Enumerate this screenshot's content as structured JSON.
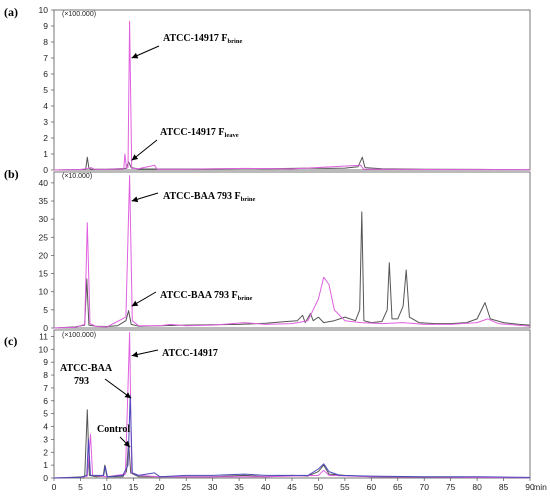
{
  "chart_data": [
    {
      "type": "line",
      "panel_label": "(a)",
      "scale_note": "(×100.000)",
      "xlim": [
        0,
        90
      ],
      "ylim": [
        0,
        10
      ],
      "y_ticks": [
        "0",
        "1",
        "2",
        "3",
        "4",
        "5",
        "6",
        "7",
        "8",
        "9",
        "10"
      ],
      "series": [
        {
          "color": "#555555",
          "points": [
            [
              0,
              0
            ],
            [
              2,
              0.02
            ],
            [
              5,
              0.03
            ],
            [
              6,
              0.05
            ],
            [
              6.3,
              0.8
            ],
            [
              6.6,
              0.1
            ],
            [
              7,
              0.05
            ],
            [
              10,
              0.05
            ],
            [
              13.6,
              0.1
            ],
            [
              14.1,
              0.5
            ],
            [
              14.6,
              0.15
            ],
            [
              16,
              0.06
            ],
            [
              20,
              0.06
            ],
            [
              25,
              0.06
            ],
            [
              30,
              0.07
            ],
            [
              36,
              0.09
            ],
            [
              40,
              0.08
            ],
            [
              45,
              0.1
            ],
            [
              48,
              0.12
            ],
            [
              52,
              0.1
            ],
            [
              55,
              0.12
            ],
            [
              57.5,
              0.2
            ],
            [
              58.3,
              0.8
            ],
            [
              58.8,
              0.15
            ],
            [
              62,
              0.08
            ],
            [
              70,
              0.05
            ],
            [
              80,
              0.04
            ],
            [
              90,
              0.02
            ]
          ]
        },
        {
          "color": "#e060e0",
          "points": [
            [
              0,
              0
            ],
            [
              5,
              0.03
            ],
            [
              6.5,
              0.1
            ],
            [
              7,
              0.15
            ],
            [
              7.6,
              0.05
            ],
            [
              10,
              0.04
            ],
            [
              13.2,
              0.08
            ],
            [
              13.4,
              1.0
            ],
            [
              13.7,
              0.1
            ],
            [
              14,
              0.15
            ],
            [
              14.3,
              9.3
            ],
            [
              14.7,
              0.1
            ],
            [
              16,
              0.08
            ],
            [
              19,
              0.3
            ],
            [
              19.5,
              0.05
            ],
            [
              25,
              0.05
            ],
            [
              36,
              0.1
            ],
            [
              45,
              0.07
            ],
            [
              58,
              0.3
            ],
            [
              58.5,
              0.05
            ],
            [
              70,
              0.03
            ],
            [
              90,
              0.02
            ]
          ]
        }
      ],
      "annotations": [
        {
          "label": "ATCC-14917 F",
          "sub": "brine",
          "x": 14.3,
          "y": 7.0
        },
        {
          "label": "ATCC-14917 F",
          "sub": "leave",
          "x": 14.3,
          "y": 0.6
        }
      ]
    },
    {
      "type": "line",
      "panel_label": "(b)",
      "scale_note": "(×10.000)",
      "xlim": [
        0,
        90
      ],
      "ylim": [
        0,
        43
      ],
      "y_ticks": [
        "0",
        "5",
        "10",
        "15",
        "20",
        "25",
        "30",
        "35",
        "40"
      ],
      "series": [
        {
          "color": "#555555",
          "points": [
            [
              0,
              0
            ],
            [
              4,
              0.3
            ],
            [
              5.8,
              0.8
            ],
            [
              6.2,
              13.5
            ],
            [
              6.6,
              0.8
            ],
            [
              8,
              0.5
            ],
            [
              10,
              0.4
            ],
            [
              12,
              0.6
            ],
            [
              13.6,
              2.0
            ],
            [
              14.1,
              4.8
            ],
            [
              14.6,
              1.0
            ],
            [
              16,
              0.5
            ],
            [
              20,
              0.6
            ],
            [
              25,
              0.8
            ],
            [
              30,
              0.9
            ],
            [
              35,
              1.0
            ],
            [
              40,
              1.3
            ],
            [
              44,
              1.8
            ],
            [
              46,
              2.0
            ],
            [
              47,
              3.5
            ],
            [
              47.5,
              1.5
            ],
            [
              48.5,
              4.0
            ],
            [
              49,
              2.0
            ],
            [
              50,
              3.0
            ],
            [
              51,
              1.5
            ],
            [
              53,
              2.0
            ],
            [
              55,
              3.0
            ],
            [
              57,
              2.0
            ],
            [
              57.8,
              5.0
            ],
            [
              58.2,
              32.0
            ],
            [
              58.6,
              2.0
            ],
            [
              60,
              1.5
            ],
            [
              62,
              1.8
            ],
            [
              63,
              5.0
            ],
            [
              63.4,
              18.0
            ],
            [
              63.9,
              2.5
            ],
            [
              65,
              2.5
            ],
            [
              66,
              6.0
            ],
            [
              66.6,
              16.0
            ],
            [
              67.2,
              3.0
            ],
            [
              69,
              1.5
            ],
            [
              72,
              1.2
            ],
            [
              75,
              1.2
            ],
            [
              78,
              1.5
            ],
            [
              80,
              2.5
            ],
            [
              81.5,
              7.0
            ],
            [
              82.5,
              2.5
            ],
            [
              85,
              1.5
            ],
            [
              88,
              1.0
            ],
            [
              90,
              0.8
            ]
          ]
        },
        {
          "color": "#e060e0",
          "points": [
            [
              0,
              0
            ],
            [
              4,
              0.2
            ],
            [
              5.8,
              1.0
            ],
            [
              6.3,
              29.0
            ],
            [
              6.8,
              1.2
            ],
            [
              8,
              0.4
            ],
            [
              10,
              0.3
            ],
            [
              13.6,
              3.0
            ],
            [
              14.3,
              42.0
            ],
            [
              14.8,
              2.0
            ],
            [
              16,
              0.6
            ],
            [
              20,
              0.6
            ],
            [
              22,
              1.0
            ],
            [
              25,
              0.6
            ],
            [
              30,
              0.8
            ],
            [
              36,
              1.5
            ],
            [
              40,
              1.0
            ],
            [
              45,
              1.2
            ],
            [
              48,
              2.0
            ],
            [
              50,
              8.0
            ],
            [
              51,
              14.0
            ],
            [
              52,
              12.0
            ],
            [
              53,
              5.0
            ],
            [
              55,
              2.0
            ],
            [
              58,
              1.5
            ],
            [
              62,
              1.2
            ],
            [
              66,
              1.5
            ],
            [
              70,
              1.0
            ],
            [
              75,
              1.0
            ],
            [
              80,
              1.5
            ],
            [
              82,
              2.5
            ],
            [
              84,
              1.2
            ],
            [
              90,
              0.5
            ]
          ]
        }
      ],
      "annotations": [
        {
          "label": "ATCC-BAA 793 F",
          "sub": "brine",
          "x": 14.3,
          "y": 35.0
        },
        {
          "label": "ATCC-BAA 793 F",
          "sub": "brine",
          "x": 14.3,
          "y": 6.0
        }
      ]
    },
    {
      "type": "line",
      "panel_label": "(c)",
      "scale_note": "(×100.000)",
      "xlim": [
        0,
        90
      ],
      "ylim": [
        0,
        11.5
      ],
      "y_ticks": [
        "0",
        "1",
        "2",
        "3",
        "4",
        "5",
        "6",
        "7",
        "8",
        "9",
        "10",
        "11"
      ],
      "xlabel": "min",
      "x_ticks": [
        "0",
        "5",
        "10",
        "15",
        "20",
        "25",
        "30",
        "35",
        "40",
        "45",
        "50",
        "55",
        "60",
        "65",
        "70",
        "75",
        "80",
        "85",
        "90"
      ],
      "series": [
        {
          "color": "#555555",
          "points": [
            [
              0,
              0
            ],
            [
              3,
              0.05
            ],
            [
              5.8,
              0.1
            ],
            [
              6.3,
              5.3
            ],
            [
              6.7,
              0.2
            ],
            [
              8,
              0.1
            ],
            [
              9.3,
              0.15
            ],
            [
              9.6,
              1.0
            ],
            [
              10,
              0.1
            ],
            [
              13,
              0.1
            ],
            [
              13.7,
              0.5
            ],
            [
              14.1,
              2.8
            ],
            [
              14.5,
              0.4
            ],
            [
              16,
              0.1
            ],
            [
              20,
              0.1
            ],
            [
              25,
              0.1
            ],
            [
              30,
              0.1
            ],
            [
              36,
              0.2
            ],
            [
              40,
              0.1
            ],
            [
              45,
              0.2
            ],
            [
              48,
              0.15
            ],
            [
              50,
              0.5
            ],
            [
              51,
              1.0
            ],
            [
              52,
              0.3
            ],
            [
              55,
              0.2
            ],
            [
              60,
              0.1
            ],
            [
              70,
              0.05
            ],
            [
              80,
              0.05
            ],
            [
              90,
              0.02
            ]
          ]
        },
        {
          "color": "#e060e0",
          "points": [
            [
              0,
              0
            ],
            [
              5,
              0.05
            ],
            [
              6.3,
              0.15
            ],
            [
              6.9,
              3.4
            ],
            [
              7.3,
              0.2
            ],
            [
              10,
              0.1
            ],
            [
              13.5,
              0.3
            ],
            [
              14.3,
              11.3
            ],
            [
              14.7,
              0.4
            ],
            [
              16,
              0.2
            ],
            [
              20,
              0.1
            ],
            [
              30,
              0.1
            ],
            [
              40,
              0.1
            ],
            [
              50,
              0.2
            ],
            [
              51,
              0.6
            ],
            [
              52,
              0.2
            ],
            [
              60,
              0.1
            ],
            [
              90,
              0.02
            ]
          ]
        },
        {
          "color": "#4a4ab8",
          "points": [
            [
              0,
              0
            ],
            [
              5,
              0.05
            ],
            [
              6.2,
              0.2
            ],
            [
              6.5,
              3.0
            ],
            [
              6.9,
              0.2
            ],
            [
              9.4,
              0.2
            ],
            [
              9.7,
              0.9
            ],
            [
              10.1,
              0.1
            ],
            [
              13,
              0.2
            ],
            [
              14,
              1.0
            ],
            [
              14.4,
              6.4
            ],
            [
              14.8,
              0.4
            ],
            [
              16,
              0.2
            ],
            [
              19,
              0.4
            ],
            [
              20,
              0.1
            ],
            [
              25,
              0.2
            ],
            [
              30,
              0.2
            ],
            [
              36,
              0.3
            ],
            [
              40,
              0.2
            ],
            [
              45,
              0.2
            ],
            [
              48,
              0.2
            ],
            [
              50,
              0.7
            ],
            [
              51,
              1.1
            ],
            [
              52,
              0.5
            ],
            [
              54,
              0.2
            ],
            [
              60,
              0.15
            ],
            [
              70,
              0.1
            ],
            [
              80,
              0.1
            ],
            [
              90,
              0.05
            ]
          ]
        }
      ],
      "annotations": [
        {
          "label": "ATCC-14917",
          "sub": "",
          "x": 14.3,
          "y": 9.5
        },
        {
          "label": "ATCC-BAA",
          "sub": "",
          "x": 14.2,
          "y": 6.2,
          "line2": "793"
        },
        {
          "label": "Control",
          "sub": "",
          "x": 14.0,
          "y": 2.4
        }
      ]
    }
  ]
}
